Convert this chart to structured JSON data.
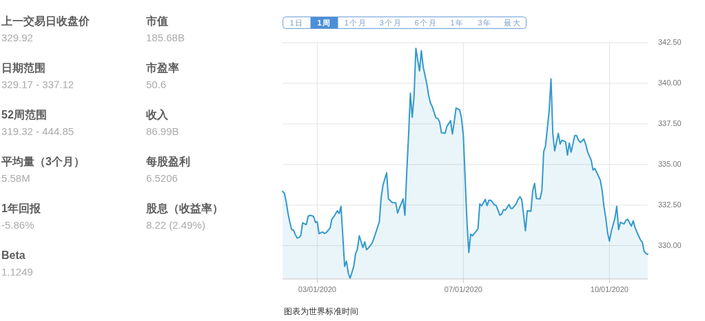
{
  "chart_data": [
    {
      "type": "other",
      "annotations": [
        "上一交易日收盘价",
        "329.92",
        "市值",
        "185.68B",
        "日期范围",
        "329.17 - 337.12",
        "市盈率",
        "50.6",
        "52周范围",
        "319.32 - 444.85",
        "收入",
        "86.99B",
        "平均量（3个月）",
        "5.58M",
        "每股盈利",
        "6.5206",
        "1年回报",
        "-5.86%",
        "股息（收益率）",
        "8.22 (2.49%)",
        "Beta",
        "1.1249"
      ]
    },
    {
      "type": "other",
      "annotations": [
        "1日",
        "1周",
        "1个月",
        "3个月",
        "6个月",
        "1年",
        "3年",
        "最大"
      ]
    },
    {
      "type": "area",
      "color": "#3399cc",
      "grid": true,
      "categories": [
        null,
        null,
        null,
        null,
        null,
        null,
        null,
        null,
        null,
        null,
        null,
        null,
        null,
        null,
        null,
        null,
        null,
        null,
        null,
        "03/01/2020",
        null,
        null,
        null,
        null,
        null,
        null,
        null,
        null,
        null,
        null,
        null,
        null,
        null,
        null,
        null,
        null,
        null,
        null,
        null,
        null,
        null,
        null,
        null,
        null,
        null,
        null,
        null,
        null,
        null,
        null,
        null,
        null,
        null,
        null,
        null,
        null,
        null,
        null,
        null,
        null,
        null,
        null,
        null,
        null,
        null,
        null,
        null,
        null,
        null,
        null,
        null,
        null,
        null,
        null,
        null,
        null,
        null,
        null,
        null,
        null,
        null,
        null,
        null,
        null,
        null,
        null,
        null,
        null,
        null,
        null,
        null,
        null,
        null,
        null,
        null,
        null,
        null,
        null,
        null,
        "07/01/2020",
        null,
        null,
        null,
        null,
        null,
        null,
        null,
        null,
        null,
        null,
        null,
        null,
        null,
        null,
        null,
        null,
        null,
        null,
        null,
        null,
        null,
        null,
        null,
        null,
        null,
        null,
        null,
        null,
        null,
        null,
        null,
        null,
        null,
        null,
        null,
        null,
        null,
        null,
        null,
        null,
        null,
        null,
        null,
        null,
        null,
        null,
        null,
        null,
        null,
        null,
        null,
        null,
        null,
        null,
        null,
        null,
        null,
        null,
        null,
        null,
        null,
        null,
        null,
        null,
        null,
        null,
        null,
        null,
        null,
        null,
        null,
        null,
        null,
        null,
        null,
        null,
        null,
        null,
        null,
        "10/01/2020",
        null,
        null,
        null,
        null,
        null,
        null,
        null,
        null,
        null,
        null,
        null,
        null,
        null,
        null,
        null,
        null,
        null,
        null,
        null,
        null,
        null
      ],
      "ylim": [
        327.95,
        342.5
      ],
      "yticks": [
        {
          "value": 330,
          "label": "330.00"
        },
        {
          "value": 332.5,
          "label": "332.50"
        },
        {
          "value": 335,
          "label": "335.00"
        },
        {
          "value": 337.5,
          "label": "337.50"
        },
        {
          "value": 340,
          "label": "340.00"
        },
        {
          "value": 342.5,
          "label": "342.50"
        }
      ],
      "values": [
        333.35,
        333.22,
        332.7,
        331.99,
        331.44,
        330.99,
        330.96,
        330.68,
        330.47,
        330.5,
        330.64,
        331.41,
        331.35,
        331.3,
        331.81,
        331.87,
        331.85,
        331.8,
        331.44,
        331.47,
        330.74,
        330.8,
        330.85,
        330.75,
        330.82,
        330.95,
        331.09,
        331.63,
        331.77,
        331.96,
        332.15,
        331.98,
        332.43,
        330.58,
        328.73,
        329.05,
        328.31,
        327.99,
        328.36,
        328.73,
        329.51,
        329.79,
        330.61,
        330.25,
        329.89,
        330.24,
        329.75,
        329.86,
        330.0,
        330.15,
        330.45,
        330.78,
        331.13,
        331.48,
        332.97,
        333.74,
        334.11,
        334.48,
        332.87,
        332.78,
        332.66,
        332.65,
        332.64,
        332.01,
        332.33,
        332.6,
        332.88,
        331.87,
        334.52,
        336.78,
        339.39,
        337.91,
        339.18,
        342.15,
        341.45,
        340.76,
        342.01,
        341.02,
        340.49,
        339.96,
        339.25,
        338.79,
        338.55,
        338.21,
        337.87,
        337.84,
        337.63,
        336.95,
        336.94,
        336.92,
        337.35,
        337.52,
        337.7,
        336.88,
        337.63,
        338.48,
        338.42,
        338.36,
        337.84,
        336.78,
        334.1,
        331.41,
        329.58,
        330.71,
        330.61,
        330.75,
        330.89,
        331.03,
        332.57,
        332.46,
        332.65,
        332.85,
        332.47,
        332.8,
        332.8,
        332.66,
        332.52,
        332.47,
        332.18,
        331.88,
        331.95,
        332.22,
        332.18,
        332.36,
        332.54,
        332.3,
        332.3,
        332.45,
        332.59,
        332.87,
        333.02,
        332.83,
        331.88,
        330.92,
        332.15,
        332.14,
        332.12,
        333.39,
        333.84,
        332.9,
        332.89,
        332.88,
        333.39,
        335.79,
        336.15,
        337.24,
        338.33,
        340.27,
        336.89,
        335.84,
        336.38,
        336.92,
        336.26,
        336.5,
        336.45,
        336.4,
        335.58,
        336.32,
        335.76,
        336.27,
        336.78,
        336.78,
        336.5,
        336.36,
        336.46,
        336.57,
        336.25,
        335.79,
        335.53,
        335.27,
        334.66,
        334.76,
        334.52,
        334.28,
        334.03,
        333.39,
        332.4,
        331.7,
        330.78,
        330.28,
        330.88,
        331.29,
        331.7,
        332.43,
        330.99,
        331.44,
        331.39,
        331.34,
        331.56,
        331.63,
        331.42,
        331.2,
        331.53,
        331.13,
        330.85,
        330.6,
        330.35,
        330.21,
        329.65,
        329.51,
        329.48
      ],
      "annotations": [
        "图表为世界标准时间"
      ]
    }
  ]
}
